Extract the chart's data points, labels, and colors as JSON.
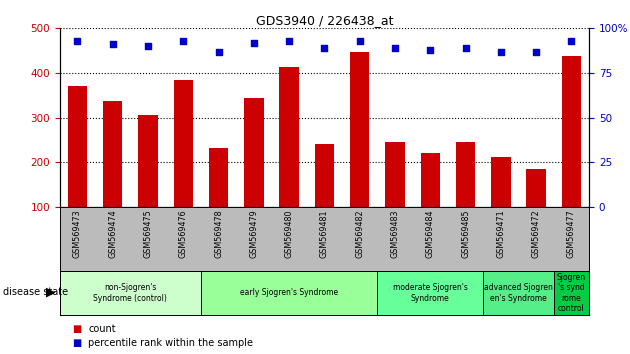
{
  "title": "GDS3940 / 226438_at",
  "samples": [
    "GSM569473",
    "GSM569474",
    "GSM569475",
    "GSM569476",
    "GSM569478",
    "GSM569479",
    "GSM569480",
    "GSM569481",
    "GSM569482",
    "GSM569483",
    "GSM569484",
    "GSM569485",
    "GSM569471",
    "GSM569472",
    "GSM569477"
  ],
  "counts": [
    370,
    338,
    307,
    385,
    232,
    345,
    413,
    242,
    448,
    246,
    221,
    246,
    211,
    185,
    437
  ],
  "percentiles": [
    93,
    91,
    90,
    93,
    87,
    92,
    93,
    89,
    93,
    89,
    88,
    89,
    87,
    87,
    93
  ],
  "bar_color": "#cc0000",
  "dot_color": "#0000cc",
  "ylim_left": [
    100,
    500
  ],
  "ylim_right": [
    0,
    100
  ],
  "yticks_left": [
    100,
    200,
    300,
    400,
    500
  ],
  "yticks_right": [
    0,
    25,
    50,
    75,
    100
  ],
  "group_configs": [
    {
      "label": "non-Sjogren's\nSyndrome (control)",
      "start": 0,
      "end": 3,
      "color": "#ccffcc"
    },
    {
      "label": "early Sjogren's Syndrome",
      "start": 4,
      "end": 8,
      "color": "#99ff99"
    },
    {
      "label": "moderate Sjogren's\nSyndrome",
      "start": 9,
      "end": 11,
      "color": "#66ff99"
    },
    {
      "label": "advanced Sjogren\nen's Syndrome",
      "start": 12,
      "end": 13,
      "color": "#55ee88"
    },
    {
      "label": "Sjogren\n's synd\nrome\ncontrol",
      "start": 14,
      "end": 14,
      "color": "#00cc44"
    }
  ],
  "tick_area_color": "#bbbbbb",
  "legend_count_color": "#cc0000",
  "legend_pct_color": "#0000cc",
  "disease_state_label": "disease state"
}
